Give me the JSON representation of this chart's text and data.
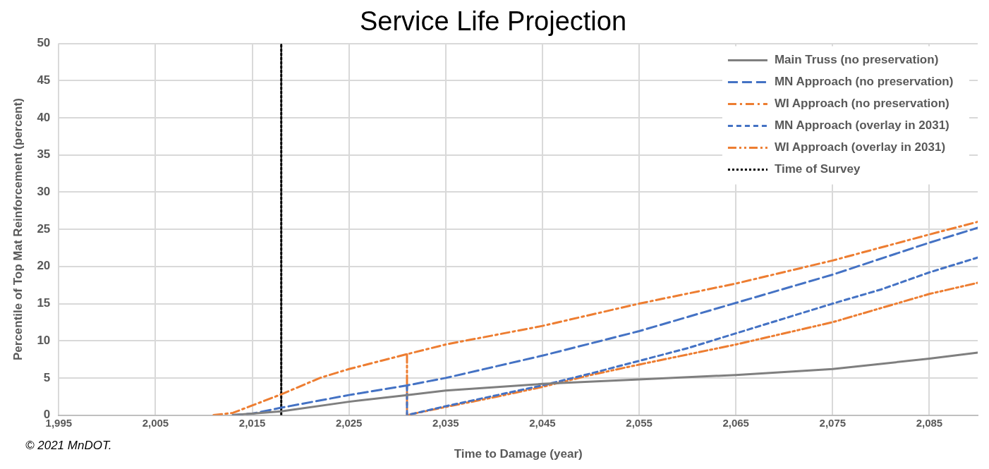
{
  "chart_data": {
    "type": "line",
    "title": "Service Life Projection",
    "xlabel": "Time to Damage (year)",
    "ylabel": "Percentile of Top Mat Reinforcement (percent)",
    "annotations": [
      "© 2021 MnDOT."
    ],
    "xlim": [
      1995,
      2090
    ],
    "xticks": [
      {
        "value": 1995,
        "label": "1,995"
      },
      {
        "value": 2005,
        "label": "2,005"
      },
      {
        "value": 2015,
        "label": "2,015"
      },
      {
        "value": 2025,
        "label": "2,025"
      },
      {
        "value": 2035,
        "label": "2,035"
      },
      {
        "value": 2045,
        "label": "2,045"
      },
      {
        "value": 2055,
        "label": "2,055"
      },
      {
        "value": 2065,
        "label": "2,065"
      },
      {
        "value": 2075,
        "label": "2,075"
      },
      {
        "value": 2085,
        "label": "2,085"
      }
    ],
    "ylim": [
      0,
      50
    ],
    "yticks": [
      0,
      5,
      10,
      15,
      20,
      25,
      30,
      35,
      40,
      45,
      50
    ],
    "grid": true,
    "legend": "top right",
    "marker": "none",
    "series": [
      {
        "name": "Main Truss (no preservation)",
        "color": "#7f7f7f",
        "line_style": "solid",
        "x": [
          2013,
          2018,
          2025,
          2031,
          2035,
          2045,
          2055,
          2065,
          2075,
          2085,
          2090
        ],
        "values": [
          0,
          0.5,
          1.8,
          2.7,
          3.3,
          4.2,
          4.8,
          5.4,
          6.2,
          7.6,
          8.4
        ]
      },
      {
        "name": "MN Approach (no preservation)",
        "color": "#4472c4",
        "line_style": "dashed",
        "x": [
          2013,
          2015,
          2018,
          2025,
          2031,
          2035,
          2045,
          2055,
          2065,
          2075,
          2085,
          2090
        ],
        "values": [
          0,
          0.2,
          1.0,
          2.7,
          4.0,
          5.0,
          8.0,
          11.3,
          15.1,
          18.9,
          23.2,
          25.2
        ]
      },
      {
        "name": "WI Approach (no preservation)",
        "color": "#ed7d31",
        "line_style": "dashed",
        "x": [
          2011,
          2013,
          2015,
          2018,
          2022,
          2025,
          2031,
          2035,
          2045,
          2055,
          2065,
          2075,
          2085,
          2090
        ],
        "values": [
          0,
          0.3,
          1.3,
          2.8,
          5.0,
          6.2,
          8.2,
          9.5,
          12.0,
          15.0,
          17.7,
          20.8,
          24.3,
          26.0
        ]
      },
      {
        "name": "MN Approach (overlay in 2031)",
        "color": "#4472c4",
        "line_style": "dashed",
        "x": [
          2031,
          2031,
          2035,
          2040,
          2045,
          2050,
          2055,
          2060,
          2065,
          2070,
          2075,
          2080,
          2085,
          2090
        ],
        "values": [
          4.0,
          0,
          1.2,
          2.6,
          4.0,
          5.6,
          7.3,
          9.0,
          11.0,
          13.0,
          15.0,
          16.9,
          19.2,
          21.2
        ]
      },
      {
        "name": "WI Approach (overlay in 2031)",
        "color": "#ed7d31",
        "line_style": "dashed",
        "x": [
          2031,
          2031,
          2035,
          2040,
          2045,
          2050,
          2055,
          2065,
          2075,
          2085,
          2090
        ],
        "values": [
          8.2,
          0,
          1.1,
          2.4,
          3.8,
          5.4,
          6.8,
          9.5,
          12.5,
          16.3,
          17.8
        ]
      },
      {
        "name": "Time of Survey",
        "color": "#000000",
        "line_style": "dotted",
        "x": [
          2018,
          2018
        ],
        "values": [
          0,
          50
        ]
      }
    ]
  }
}
